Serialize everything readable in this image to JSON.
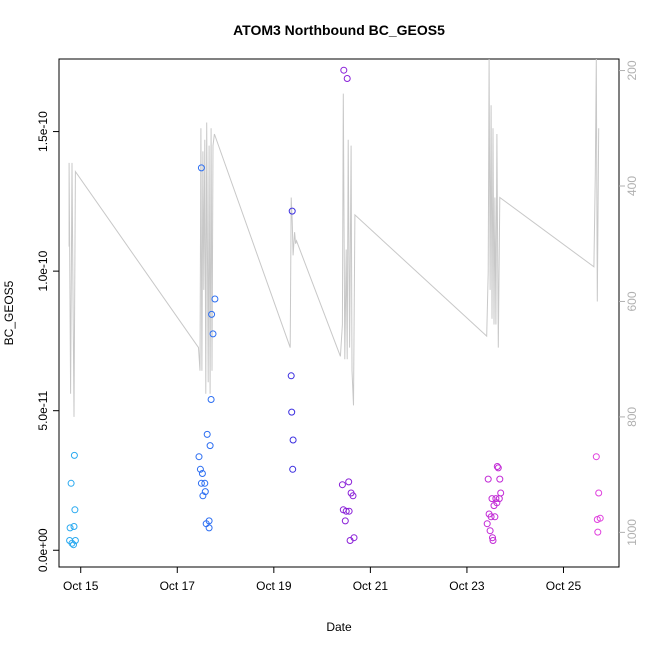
{
  "chart_data": {
    "type": "scatter",
    "title": "ATOM3 Northbound BC_GEOS5",
    "xlabel": "Date",
    "ylabel": "BC_GEOS5",
    "x_unit": "days since Oct 14 00:00",
    "xlim": [
      14.55,
      26.15
    ],
    "ylim": [
      -6e-12,
      1.76e-10
    ],
    "x_ticks": [
      {
        "value": 15,
        "label": "Oct 15"
      },
      {
        "value": 17,
        "label": "Oct 17"
      },
      {
        "value": 19,
        "label": "Oct 19"
      },
      {
        "value": 21,
        "label": "Oct 21"
      },
      {
        "value": 23,
        "label": "Oct 23"
      },
      {
        "value": 25,
        "label": "Oct 25"
      }
    ],
    "y_ticks": [
      {
        "value": 0,
        "label": "0.0e+00"
      },
      {
        "value": 5e-11,
        "label": "5.0e-11"
      },
      {
        "value": 1e-10,
        "label": "1.0e-10"
      },
      {
        "value": 1.5e-10,
        "label": "1.5e-10"
      }
    ],
    "right_axis": {
      "color": "#b0b0b0",
      "range": [
        180,
        1060
      ],
      "ticks": [
        {
          "value": 200,
          "label": "200"
        },
        {
          "value": 400,
          "label": "400"
        },
        {
          "value": 600,
          "label": "600"
        },
        {
          "value": 800,
          "label": "800"
        },
        {
          "value": 1000,
          "label": "1000"
        }
      ]
    },
    "grid": false,
    "legend": "none",
    "series": [
      {
        "marker": "circle-open",
        "points": [
          {
            "x": 14.77,
            "y": 3.5e-12,
            "color": "#29a9f0"
          },
          {
            "x": 14.78,
            "y": 8e-12,
            "color": "#29a9f0"
          },
          {
            "x": 14.8,
            "y": 2.4e-11,
            "color": "#29a9f0"
          },
          {
            "x": 14.82,
            "y": 2.5e-12,
            "color": "#29a9f0"
          },
          {
            "x": 14.85,
            "y": 2e-12,
            "color": "#29a9f0"
          },
          {
            "x": 14.86,
            "y": 8.5e-12,
            "color": "#29a9f0"
          },
          {
            "x": 14.87,
            "y": 3.4e-11,
            "color": "#29a9f0"
          },
          {
            "x": 14.88,
            "y": 1.45e-11,
            "color": "#29a9f0"
          },
          {
            "x": 14.89,
            "y": 3.5e-12,
            "color": "#29a9f0"
          },
          {
            "x": 17.45,
            "y": 3.35e-11,
            "color": "#2c6ef2"
          },
          {
            "x": 17.48,
            "y": 2.9e-11,
            "color": "#2c6ef2"
          },
          {
            "x": 17.5,
            "y": 1.37e-10,
            "color": "#2c6ef2"
          },
          {
            "x": 17.5,
            "y": 2.4e-11,
            "color": "#2c6ef2"
          },
          {
            "x": 17.52,
            "y": 2.75e-11,
            "color": "#2c6ef2"
          },
          {
            "x": 17.53,
            "y": 1.95e-11,
            "color": "#2c6ef2"
          },
          {
            "x": 17.57,
            "y": 2.4e-11,
            "color": "#2c6ef2"
          },
          {
            "x": 17.58,
            "y": 2.1e-11,
            "color": "#2c6ef2"
          },
          {
            "x": 17.6,
            "y": 9.5e-12,
            "color": "#2c6ef2"
          },
          {
            "x": 17.62,
            "y": 4.15e-11,
            "color": "#2c6ef2"
          },
          {
            "x": 17.66,
            "y": 1.05e-11,
            "color": "#2c6ef2"
          },
          {
            "x": 17.66,
            "y": 8e-12,
            "color": "#2c6ef2"
          },
          {
            "x": 17.68,
            "y": 3.75e-11,
            "color": "#2c6ef2"
          },
          {
            "x": 17.7,
            "y": 5.4e-11,
            "color": "#2c6ef2"
          },
          {
            "x": 17.71,
            "y": 8.45e-11,
            "color": "#2c6ef2"
          },
          {
            "x": 17.74,
            "y": 7.75e-11,
            "color": "#2c6ef2"
          },
          {
            "x": 17.78,
            "y": 9e-11,
            "color": "#2c6ef2"
          },
          {
            "x": 19.36,
            "y": 6.25e-11,
            "color": "#3b2ee0"
          },
          {
            "x": 19.37,
            "y": 4.95e-11,
            "color": "#3b2ee0"
          },
          {
            "x": 19.38,
            "y": 1.215e-10,
            "color": "#3b2ee0"
          },
          {
            "x": 19.39,
            "y": 2.9e-11,
            "color": "#3b2ee0"
          },
          {
            "x": 19.4,
            "y": 3.95e-11,
            "color": "#3b2ee0"
          },
          {
            "x": 20.42,
            "y": 2.35e-11,
            "color": "#8a20d8"
          },
          {
            "x": 20.44,
            "y": 1.45e-11,
            "color": "#8a20d8"
          },
          {
            "x": 20.45,
            "y": 1.72e-10,
            "color": "#8a20d8"
          },
          {
            "x": 20.48,
            "y": 1.05e-11,
            "color": "#8a20d8"
          },
          {
            "x": 20.5,
            "y": 1.4e-11,
            "color": "#8a20d8"
          },
          {
            "x": 20.52,
            "y": 1.69e-10,
            "color": "#8a20d8"
          },
          {
            "x": 20.55,
            "y": 2.45e-11,
            "color": "#8a20d8"
          },
          {
            "x": 20.56,
            "y": 1.4e-11,
            "color": "#8a20d8"
          },
          {
            "x": 20.58,
            "y": 3.5e-12,
            "color": "#8a20d8"
          },
          {
            "x": 20.6,
            "y": 2.05e-11,
            "color": "#8a20d8"
          },
          {
            "x": 20.64,
            "y": 1.95e-11,
            "color": "#8a20d8"
          },
          {
            "x": 20.66,
            "y": 4.5e-12,
            "color": "#8a20d8"
          },
          {
            "x": 23.42,
            "y": 9.5e-12,
            "color": "#c22ad6"
          },
          {
            "x": 23.44,
            "y": 2.55e-11,
            "color": "#c22ad6"
          },
          {
            "x": 23.46,
            "y": 1.3e-11,
            "color": "#c22ad6"
          },
          {
            "x": 23.48,
            "y": 7e-12,
            "color": "#c22ad6"
          },
          {
            "x": 23.5,
            "y": 1.2e-11,
            "color": "#c22ad6"
          },
          {
            "x": 23.52,
            "y": 1.85e-11,
            "color": "#c22ad6"
          },
          {
            "x": 23.53,
            "y": 4.5e-12,
            "color": "#c22ad6"
          },
          {
            "x": 23.54,
            "y": 3.5e-12,
            "color": "#c22ad6"
          },
          {
            "x": 23.56,
            "y": 1.6e-11,
            "color": "#c22ad6"
          },
          {
            "x": 23.58,
            "y": 1.2e-11,
            "color": "#c22ad6"
          },
          {
            "x": 23.6,
            "y": 1.85e-11,
            "color": "#c22ad6"
          },
          {
            "x": 23.62,
            "y": 1.7e-11,
            "color": "#c22ad6"
          },
          {
            "x": 23.63,
            "y": 3e-11,
            "color": "#c22ad6"
          },
          {
            "x": 23.65,
            "y": 2.95e-11,
            "color": "#c22ad6"
          },
          {
            "x": 23.67,
            "y": 1.85e-11,
            "color": "#c22ad6"
          },
          {
            "x": 23.68,
            "y": 2.55e-11,
            "color": "#c22ad6"
          },
          {
            "x": 23.7,
            "y": 2.05e-11,
            "color": "#c22ad6"
          },
          {
            "x": 25.68,
            "y": 3.35e-11,
            "color": "#e040de"
          },
          {
            "x": 25.7,
            "y": 1.1e-11,
            "color": "#e040de"
          },
          {
            "x": 25.71,
            "y": 6.5e-12,
            "color": "#e040de"
          },
          {
            "x": 25.73,
            "y": 2.05e-11,
            "color": "#e040de"
          },
          {
            "x": 25.76,
            "y": 1.15e-11,
            "color": "#e040de"
          }
        ]
      }
    ],
    "secondary_line": {
      "axis": "right",
      "color": "#c8c8c8",
      "points": [
        [
          14.76,
          505
        ],
        [
          14.76,
          360
        ],
        [
          14.79,
          760
        ],
        [
          14.82,
          360
        ],
        [
          14.84,
          590
        ],
        [
          14.86,
          800
        ],
        [
          14.89,
          375
        ],
        [
          17.44,
          680
        ],
        [
          17.47,
          720
        ],
        [
          17.49,
          300
        ],
        [
          17.51,
          720
        ],
        [
          17.53,
          340
        ],
        [
          17.55,
          580
        ],
        [
          17.57,
          320
        ],
        [
          17.59,
          760
        ],
        [
          17.61,
          290
        ],
        [
          17.64,
          740
        ],
        [
          17.66,
          330
        ],
        [
          17.68,
          760
        ],
        [
          17.7,
          300
        ],
        [
          17.72,
          720
        ],
        [
          17.74,
          330
        ],
        [
          17.77,
          310
        ],
        [
          19.34,
          680
        ],
        [
          19.36,
          420
        ],
        [
          19.38,
          460
        ],
        [
          19.4,
          520
        ],
        [
          19.43,
          480
        ],
        [
          19.45,
          500
        ],
        [
          19.47,
          495
        ],
        [
          20.38,
          695
        ],
        [
          20.42,
          640
        ],
        [
          20.44,
          240
        ],
        [
          20.47,
          700
        ],
        [
          20.5,
          510
        ],
        [
          20.52,
          700
        ],
        [
          20.54,
          320
        ],
        [
          20.57,
          680
        ],
        [
          20.6,
          330
        ],
        [
          20.62,
          720
        ],
        [
          20.65,
          780
        ],
        [
          20.68,
          450
        ],
        [
          23.41,
          660
        ],
        [
          23.44,
          550
        ],
        [
          23.46,
          180
        ],
        [
          23.48,
          580
        ],
        [
          23.5,
          260
        ],
        [
          23.52,
          630
        ],
        [
          23.54,
          300
        ],
        [
          23.56,
          640
        ],
        [
          23.58,
          420
        ],
        [
          23.6,
          640
        ],
        [
          23.62,
          310
        ],
        [
          23.65,
          680
        ],
        [
          23.68,
          420
        ],
        [
          25.63,
          540
        ],
        [
          25.66,
          380
        ],
        [
          25.68,
          180
        ],
        [
          25.7,
          600
        ],
        [
          25.73,
          300
        ]
      ]
    }
  }
}
